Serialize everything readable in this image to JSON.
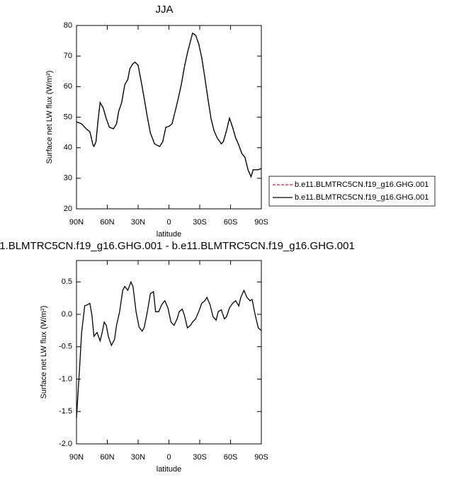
{
  "chart_data": [
    {
      "type": "line",
      "title": "JJA",
      "ylabel": "Surface net LW flux (W/m²)",
      "xlabel": "latitude",
      "x": [
        90,
        85,
        80,
        77,
        74,
        73,
        71,
        69,
        67,
        64,
        61,
        58,
        54,
        51,
        49,
        46,
        43,
        40,
        38,
        35,
        33,
        30,
        27,
        24,
        21,
        18,
        14,
        12,
        9,
        6,
        3,
        0,
        -3,
        -6,
        -9,
        -12,
        -15,
        -18,
        -21,
        -23,
        -26,
        -29,
        -32,
        -35,
        -38,
        -41,
        -44,
        -47,
        -51,
        -53,
        -56,
        -59,
        -62,
        -65,
        -68,
        -71,
        -74,
        -77,
        -80,
        -82,
        -85,
        -87,
        -90
      ],
      "series": [
        {
          "name": "b.e11.BLMTRC5CN.f19_g16.GHG.001",
          "color": "#e41a1c",
          "dashed": true,
          "values": [
            48.5,
            47.8,
            46,
            45.3,
            41,
            40.4,
            42,
            49,
            54.8,
            53,
            49.5,
            46.7,
            46.2,
            47.8,
            51.8,
            54.8,
            60.6,
            62.4,
            65.9,
            67.5,
            68,
            67,
            61.7,
            56,
            50,
            44.8,
            41.3,
            40.9,
            40.4,
            42,
            46.7,
            47,
            47.8,
            51.8,
            56,
            60.6,
            66.3,
            71,
            74.9,
            77.5,
            76.8,
            74,
            69.4,
            62.9,
            56,
            49.5,
            45.5,
            43.2,
            41.3,
            42,
            45.5,
            49.7,
            46.7,
            43.2,
            40.9,
            38.1,
            36.9,
            32.8,
            30.5,
            32.8,
            32.8,
            32.8,
            33.2
          ]
        },
        {
          "name": "b.e11.BLMTRC5CN.f19_g16.GHG.001",
          "color": "#000000",
          "dashed": false,
          "values": [
            48.5,
            47.8,
            46,
            45.3,
            41,
            40.4,
            42,
            49,
            54.8,
            53,
            49.5,
            46.7,
            46.2,
            47.8,
            51.8,
            54.8,
            60.6,
            62.4,
            65.9,
            67.5,
            68,
            67,
            61.7,
            56,
            50,
            44.8,
            41.3,
            40.9,
            40.4,
            42,
            46.7,
            47,
            47.8,
            51.8,
            56,
            60.6,
            66.3,
            71,
            74.9,
            77.5,
            76.8,
            74,
            69.4,
            62.9,
            56,
            49.5,
            45.5,
            43.2,
            41.3,
            42,
            45.5,
            49.7,
            46.7,
            43.2,
            40.9,
            38.1,
            36.9,
            32.8,
            30.5,
            32.8,
            32.8,
            32.8,
            33.2
          ]
        }
      ],
      "xlim": [
        90,
        -90
      ],
      "xticks": [
        {
          "value": 90,
          "label": "90N"
        },
        {
          "value": 60,
          "label": "60N"
        },
        {
          "value": 30,
          "label": "30N"
        },
        0,
        {
          "value": -30,
          "label": "30S"
        },
        {
          "value": -60,
          "label": "60S"
        },
        {
          "value": -90,
          "label": "90S"
        }
      ],
      "ylim": [
        20,
        80
      ],
      "yticks": [
        20,
        30,
        40,
        50,
        60,
        70,
        80
      ],
      "legend": "right"
    },
    {
      "type": "line",
      "title": "1.BLMTRC5CN.f19_g16.GHG.001 - b.e11.BLMTRC5CN.f19_g16.GHG.001",
      "ylabel": "Surface net LW flux (W/m²)",
      "xlabel": "latitude",
      "x": [
        90,
        87,
        85,
        82,
        79,
        77,
        75,
        73,
        70,
        67,
        65,
        63,
        61,
        59,
        56,
        53,
        51,
        48,
        45,
        43,
        40,
        37,
        35,
        32,
        29,
        26,
        24,
        21,
        18,
        15,
        13,
        10,
        7,
        4,
        1,
        -2,
        -5,
        -8,
        -10,
        -13,
        -15,
        -18,
        -21,
        -23,
        -26,
        -29,
        -32,
        -35,
        -37,
        -40,
        -43,
        -46,
        -48,
        -51,
        -54,
        -56,
        -59,
        -62,
        -65,
        -68,
        -70,
        -73,
        -76,
        -79,
        -81,
        -84,
        -87,
        -90
      ],
      "series": [
        {
          "color": "#000000",
          "dashed": false,
          "values": [
            -1.6,
            -0.83,
            -0.28,
            0.13,
            0.15,
            0.17,
            -0.01,
            -0.34,
            -0.28,
            -0.41,
            -0.28,
            -0.12,
            -0.17,
            -0.34,
            -0.48,
            -0.39,
            -0.17,
            0.04,
            0.37,
            0.43,
            0.37,
            0.5,
            0.43,
            0.04,
            -0.2,
            -0.26,
            -0.2,
            0.04,
            0.32,
            0.35,
            0.04,
            0.04,
            0.15,
            0.21,
            0.1,
            -0.12,
            -0.17,
            -0.07,
            0.04,
            0.08,
            -0.01,
            -0.21,
            -0.17,
            -0.12,
            -0.07,
            0.04,
            0.17,
            0.21,
            0.26,
            0.15,
            -0.04,
            -0.09,
            0.04,
            0.07,
            -0.07,
            -0.04,
            0.1,
            0.17,
            0.21,
            0.13,
            0.26,
            0.37,
            0.26,
            0.21,
            0.23,
            -0.01,
            -0.21,
            -0.25
          ]
        }
      ],
      "xlim": [
        90,
        -90
      ],
      "xticks": [
        {
          "value": 90,
          "label": "90N"
        },
        {
          "value": 60,
          "label": "60N"
        },
        {
          "value": 30,
          "label": "30N"
        },
        0,
        {
          "value": -30,
          "label": "30S"
        },
        {
          "value": -60,
          "label": "60S"
        },
        {
          "value": -90,
          "label": "90S"
        }
      ],
      "ylim": [
        -2.0,
        0.83
      ],
      "yticks": [
        {
          "value": -2.0,
          "label": "-2.0"
        },
        -1.5,
        {
          "value": -1.0,
          "label": "-1.0"
        },
        -0.5,
        {
          "value": 0,
          "label": "0.0"
        },
        0.5
      ]
    }
  ]
}
